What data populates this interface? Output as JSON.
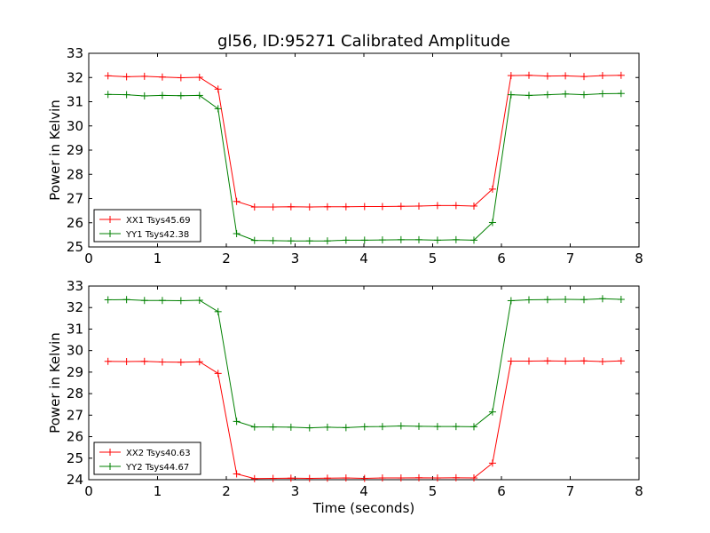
{
  "chart_data": [
    {
      "type": "line",
      "title": "gl56, ID:95271 Calibrated Amplitude",
      "xlabel": "",
      "ylabel": "Power in Kelvin",
      "xlim": [
        0,
        8
      ],
      "ylim": [
        25,
        33
      ],
      "xticks": [
        "0",
        "1",
        "2",
        "3",
        "4",
        "5",
        "6",
        "7",
        "8"
      ],
      "yticks": [
        "25",
        "26",
        "27",
        "28",
        "29",
        "30",
        "31",
        "32",
        "33"
      ],
      "grid": false,
      "legend_position": "lower-left",
      "x": [
        0.28,
        0.55,
        0.81,
        1.07,
        1.34,
        1.61,
        1.88,
        2.15,
        2.41,
        2.68,
        2.94,
        3.21,
        3.47,
        3.74,
        4.01,
        4.27,
        4.54,
        4.8,
        5.07,
        5.34,
        5.6,
        5.87,
        6.14,
        6.4,
        6.67,
        6.93,
        7.2,
        7.47,
        7.74
      ],
      "series": [
        {
          "name": "XX1 Tsys45.69",
          "color": "#ff0000",
          "values": [
            32.07,
            32.03,
            32.05,
            32.02,
            31.99,
            32.01,
            31.52,
            26.88,
            26.65,
            26.65,
            26.66,
            26.65,
            26.66,
            26.66,
            26.67,
            26.67,
            26.68,
            26.69,
            26.71,
            26.71,
            26.69,
            27.39,
            32.08,
            32.09,
            32.06,
            32.07,
            32.04,
            32.08,
            32.09
          ]
        },
        {
          "name": "YY1 Tsys42.38",
          "color": "#008000",
          "values": [
            31.3,
            31.29,
            31.24,
            31.26,
            31.25,
            31.26,
            30.71,
            25.55,
            25.27,
            25.26,
            25.25,
            25.25,
            25.25,
            25.28,
            25.28,
            25.29,
            25.3,
            25.3,
            25.28,
            25.3,
            25.28,
            26.01,
            31.29,
            31.26,
            31.29,
            31.32,
            31.29,
            31.33,
            31.34
          ]
        }
      ]
    },
    {
      "type": "line",
      "title": "",
      "xlabel": "Time (seconds)",
      "ylabel": "Power in Kelvin",
      "xlim": [
        0,
        8
      ],
      "ylim": [
        24,
        33
      ],
      "xticks": [
        "0",
        "1",
        "2",
        "3",
        "4",
        "5",
        "6",
        "7",
        "8"
      ],
      "yticks": [
        "24",
        "25",
        "26",
        "27",
        "28",
        "29",
        "30",
        "31",
        "32",
        "33"
      ],
      "grid": false,
      "legend_position": "lower-left",
      "x": [
        0.28,
        0.55,
        0.81,
        1.07,
        1.34,
        1.61,
        1.88,
        2.15,
        2.41,
        2.68,
        2.94,
        3.21,
        3.47,
        3.74,
        4.01,
        4.27,
        4.54,
        4.8,
        5.07,
        5.34,
        5.6,
        5.87,
        6.14,
        6.4,
        6.67,
        6.93,
        7.2,
        7.47,
        7.74
      ],
      "series": [
        {
          "name": "XX2 Tsys40.63",
          "color": "#ff0000",
          "values": [
            29.5,
            29.49,
            29.5,
            29.47,
            29.46,
            29.48,
            28.94,
            24.27,
            24.05,
            24.06,
            24.07,
            24.06,
            24.07,
            24.08,
            24.06,
            24.08,
            24.08,
            24.09,
            24.08,
            24.09,
            24.08,
            24.77,
            29.51,
            29.51,
            29.52,
            29.51,
            29.52,
            29.49,
            29.52
          ]
        },
        {
          "name": "YY2 Tsys44.67",
          "color": "#008000",
          "values": [
            32.36,
            32.37,
            32.33,
            32.33,
            32.32,
            32.34,
            31.81,
            26.71,
            26.45,
            26.45,
            26.44,
            26.41,
            26.44,
            26.42,
            26.46,
            26.47,
            26.5,
            26.48,
            26.47,
            26.47,
            26.46,
            27.15,
            32.32,
            32.36,
            32.37,
            32.38,
            32.37,
            32.41,
            32.38
          ]
        }
      ]
    }
  ]
}
